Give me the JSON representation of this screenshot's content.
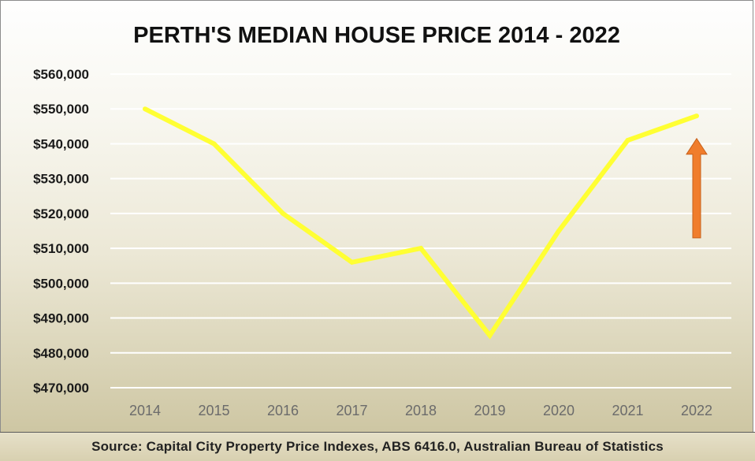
{
  "chart_data": {
    "type": "line",
    "title": "PERTH'S MEDIAN HOUSE PRICE 2014 - 2022",
    "xlabel": "",
    "ylabel": "",
    "x": [
      "2014",
      "2015",
      "2016",
      "2017",
      "2018",
      "2019",
      "2020",
      "2021",
      "2022"
    ],
    "series": [
      {
        "values": [
          550000,
          540000,
          520000,
          506000,
          510000,
          485000,
          515000,
          541000,
          548000
        ],
        "color": "#ffff33"
      }
    ],
    "y_ticks": [
      "$470,000",
      "$480,000",
      "$490,000",
      "$500,000",
      "$510,000",
      "$520,000",
      "$530,000",
      "$540,000",
      "$550,000",
      "$560,000"
    ],
    "ylim": [
      470000,
      560000
    ],
    "grid": true,
    "legend": "none",
    "annotation": {
      "type": "up-arrow",
      "color": "#f07d2c",
      "from": 513000,
      "to": 541500,
      "near_category": "2022"
    }
  },
  "source": "Source: Capital City Property Price Indexes, ABS 6416.0, Australian Bureau of Statistics",
  "colors": {
    "gridline": "#ffffff",
    "axis_text": "#1a1a1a",
    "category_text": "#6b6b6b"
  }
}
